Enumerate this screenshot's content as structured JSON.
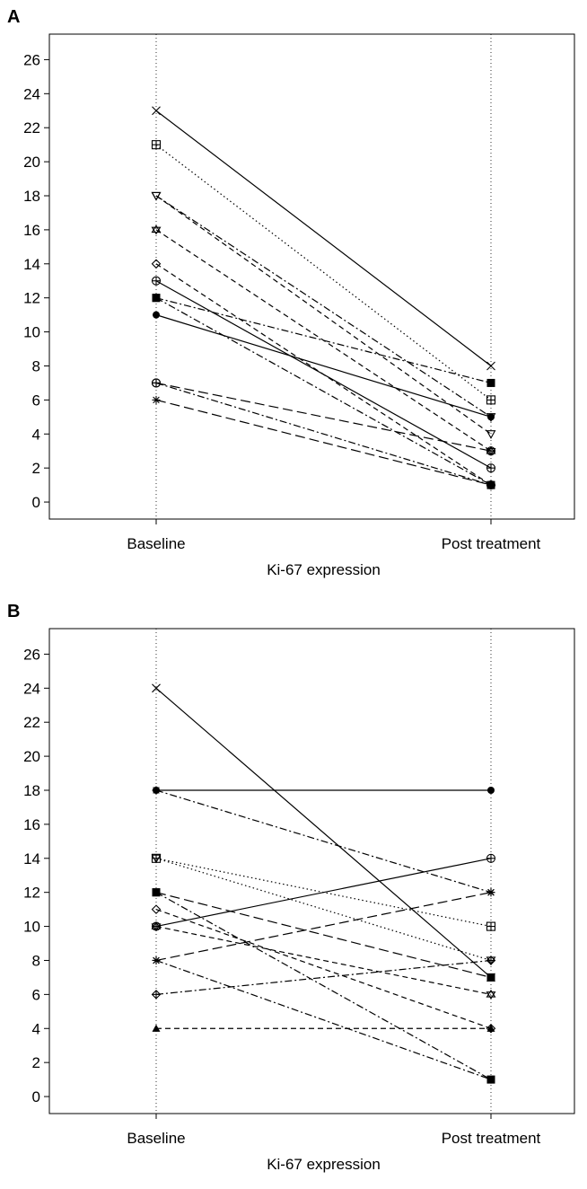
{
  "chart_data": [
    {
      "type": "line",
      "panel_label": "A",
      "categories": [
        "Baseline",
        "Post treatment"
      ],
      "xlabel": "Ki-67 expression",
      "ylabel": "",
      "ylim": [
        -1,
        27.5
      ],
      "yticks": [
        0,
        2,
        4,
        6,
        8,
        10,
        12,
        14,
        16,
        18,
        20,
        22,
        24,
        26
      ],
      "grid": "vertical dotted lines at categories",
      "series": [
        {
          "values": [
            23,
            8
          ],
          "marker": "x",
          "line": "solid"
        },
        {
          "values": [
            21,
            6
          ],
          "marker": "boxplus",
          "line": "dotted"
        },
        {
          "values": [
            18,
            5
          ],
          "marker": "triangle-down-open",
          "line": "dashdot"
        },
        {
          "values": [
            18,
            4
          ],
          "marker": "triangle-down-open",
          "line": "dashed"
        },
        {
          "values": [
            16,
            3
          ],
          "marker": "star-of-david",
          "line": "dashed"
        },
        {
          "values": [
            14,
            1
          ],
          "marker": "diamond-open",
          "line": "dashed"
        },
        {
          "values": [
            13,
            2
          ],
          "marker": "circle-plus",
          "line": "solid"
        },
        {
          "values": [
            12,
            7
          ],
          "marker": "square-filled",
          "line": "dashdot"
        },
        {
          "values": [
            12,
            1
          ],
          "marker": "square-filled",
          "line": "dashdot"
        },
        {
          "values": [
            11,
            5
          ],
          "marker": "circle-filled",
          "line": "solid"
        },
        {
          "values": [
            7,
            3
          ],
          "marker": "circle-plus",
          "line": "longdash"
        },
        {
          "values": [
            7,
            1
          ],
          "marker": "circle-plus",
          "line": "dashdot"
        },
        {
          "values": [
            6,
            1
          ],
          "marker": "asterisk",
          "line": "longdash"
        }
      ]
    },
    {
      "type": "line",
      "panel_label": "B",
      "categories": [
        "Baseline",
        "Post treatment"
      ],
      "xlabel": "Ki-67 expression",
      "ylabel": "",
      "ylim": [
        -1,
        27.5
      ],
      "yticks": [
        0,
        2,
        4,
        6,
        8,
        10,
        12,
        14,
        16,
        18,
        20,
        22,
        24,
        26
      ],
      "grid": "vertical dotted lines at categories",
      "series": [
        {
          "values": [
            24,
            7
          ],
          "marker": "x",
          "line": "solid"
        },
        {
          "values": [
            18,
            18
          ],
          "marker": "circle-filled",
          "line": "solid"
        },
        {
          "values": [
            18,
            12
          ],
          "marker": "asterisk",
          "line": "dashdot"
        },
        {
          "values": [
            14,
            10
          ],
          "marker": "boxplus",
          "line": "dotted"
        },
        {
          "values": [
            14,
            8
          ],
          "marker": "triangle-down-open",
          "line": "dotted"
        },
        {
          "values": [
            12,
            7
          ],
          "marker": "square-filled",
          "line": "longdash"
        },
        {
          "values": [
            12,
            1
          ],
          "marker": "square-filled",
          "line": "dashdot"
        },
        {
          "values": [
            11,
            4
          ],
          "marker": "diamond-open",
          "line": "dashed"
        },
        {
          "values": [
            10,
            14
          ],
          "marker": "circle-plus",
          "line": "solid"
        },
        {
          "values": [
            10,
            6
          ],
          "marker": "star-of-david",
          "line": "dashed"
        },
        {
          "values": [
            8,
            12
          ],
          "marker": "asterisk",
          "line": "longdash"
        },
        {
          "values": [
            8,
            1
          ],
          "marker": "asterisk",
          "line": "dashdot"
        },
        {
          "values": [
            6,
            8
          ],
          "marker": "diamond-plus",
          "line": "dashdot"
        },
        {
          "values": [
            4,
            4
          ],
          "marker": "triangle-filled",
          "line": "dashed"
        }
      ]
    }
  ]
}
